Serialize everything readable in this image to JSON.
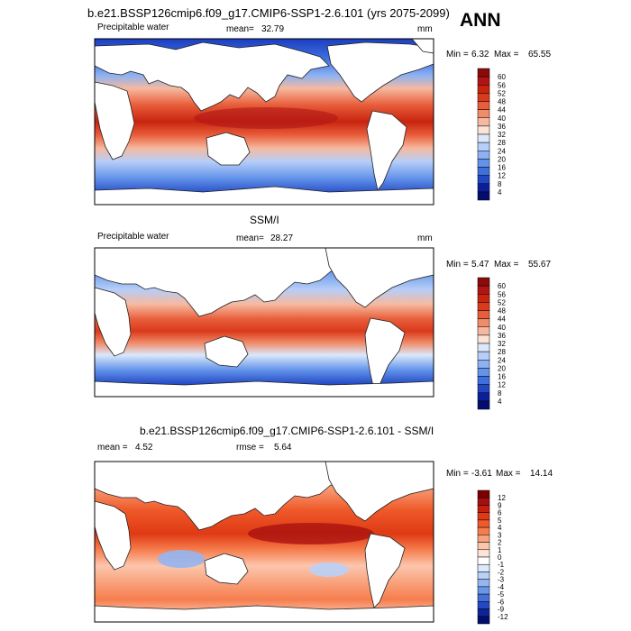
{
  "header": {
    "title": "b.e21.BSSP126cmip6.f09_g17.CMIP6-SSP1-2.6.101 (yrs 2075-2099)",
    "season": "ANN"
  },
  "chart_data": [
    {
      "type": "heatmap",
      "variable": "Precipitable water",
      "mean_label": "mean=",
      "mean": "32.79",
      "units": "mm",
      "min_label": "Min =",
      "min": "6.32",
      "max_label": "Max =",
      "max": "65.55",
      "levels": [
        "60",
        "56",
        "52",
        "48",
        "44",
        "40",
        "36",
        "32",
        "28",
        "24",
        "20",
        "16",
        "12",
        "8",
        "4"
      ],
      "colors": [
        "#8b0a0a",
        "#b01515",
        "#c8240f",
        "#da3a1c",
        "#e85d3a",
        "#f08c6a",
        "#f6b99f",
        "#fbe3d6",
        "#dbe8fb",
        "#b6cef8",
        "#8cb2f3",
        "#6494ea",
        "#3f6fdf",
        "#2147c4",
        "#0b1f9a",
        "#030d6e"
      ]
    },
    {
      "type": "heatmap",
      "title": "SSM/I",
      "variable": "Precipitable water",
      "mean_label": "mean=",
      "mean": "28.27",
      "units": "mm",
      "min_label": "Min =",
      "min": "5.47",
      "max_label": "Max =",
      "max": "55.67",
      "levels": [
        "60",
        "56",
        "52",
        "48",
        "44",
        "40",
        "36",
        "32",
        "28",
        "24",
        "20",
        "16",
        "12",
        "8",
        "4"
      ],
      "colors": [
        "#8b0a0a",
        "#b01515",
        "#c8240f",
        "#da3a1c",
        "#e85d3a",
        "#f08c6a",
        "#f6b99f",
        "#fbe3d6",
        "#dbe8fb",
        "#b6cef8",
        "#8cb2f3",
        "#6494ea",
        "#3f6fdf",
        "#2147c4",
        "#0b1f9a",
        "#030d6e"
      ]
    },
    {
      "type": "heatmap",
      "title": "b.e21.BSSP126cmip6.f09_g17.CMIP6-SSP1-2.6.101 - SSM/I",
      "mean_label": "mean =",
      "mean": "4.52",
      "rmse_label": "rmse =",
      "rmse": "5.64",
      "min_label": "Min =",
      "min": "-3.61",
      "max_label": "Max =",
      "max": "14.14",
      "levels": [
        "12",
        "9",
        "6",
        "5",
        "4",
        "3",
        "2",
        "1",
        "0",
        "-1",
        "-2",
        "-3",
        "-4",
        "-5",
        "-6",
        "-9",
        "-12"
      ],
      "colors": [
        "#7a0000",
        "#a50f0f",
        "#c41e0e",
        "#df3a14",
        "#ef5a2a",
        "#f67d4d",
        "#f9a37e",
        "#fbc6ad",
        "#fde4d8",
        "#ffffff",
        "#dce8fb",
        "#b9d0f7",
        "#93b5f1",
        "#6b95e8",
        "#4371da",
        "#2348c2",
        "#0c249a",
        "#020e6e"
      ]
    }
  ]
}
